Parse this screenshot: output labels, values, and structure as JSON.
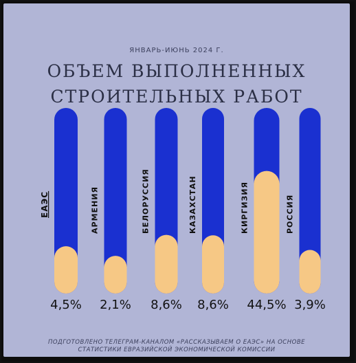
{
  "header": {
    "subtitle": "ЯНВАРЬ-ИЮНЬ 2024 Г.",
    "title_line1": "ОБЪЕМ ВЫПОЛНЕННЫХ",
    "title_line2": "СТРОИТЕЛЬНЫХ РАБОТ"
  },
  "footnote": {
    "line1": "ПОДГОТОВЛЕНО ТЕЛЕГРАМ-КАНАЛОМ «РАССКАЗЫВАЕМ О ЕАЭС» НА ОСНОВЕ",
    "line2": "СТАТИСТИКИ ЕВРАЗИЙСКОЙ ЭКОНОМИЧЕСКОЙ КОМИССИИ"
  },
  "colors": {
    "track": "#1a30d0",
    "fill": "#f6c885",
    "background": "#b1b5d6"
  },
  "chart_data": {
    "type": "bar",
    "categories": [
      "ЕАЭС",
      "АРМЕНИЯ",
      "БЕЛОРУССИЯ",
      "КАЗАХСТАН",
      "КИРГИЗИЯ",
      "РОССИЯ"
    ],
    "values": [
      4.5,
      2.1,
      8.6,
      8.6,
      44.5,
      3.9
    ],
    "value_labels": [
      "4,5%",
      "2,1%",
      "8,6%",
      "8,6%",
      "44,5%",
      "3,9%"
    ],
    "unit": "%",
    "ylim": [
      0,
      50
    ],
    "grid": false,
    "legend": "none"
  }
}
